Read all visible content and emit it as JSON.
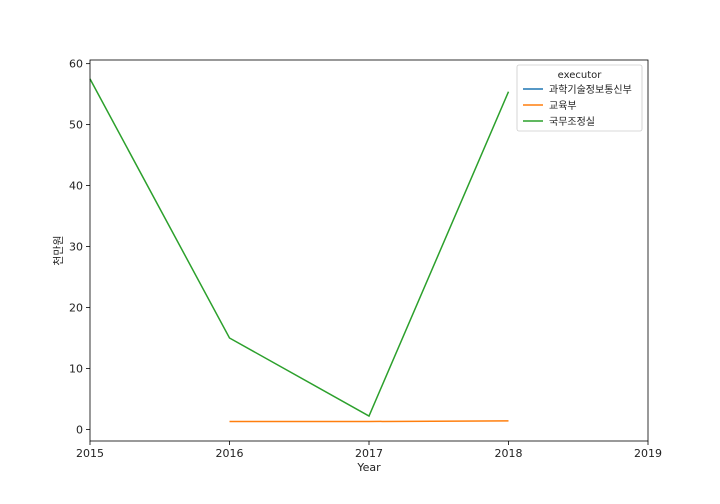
{
  "chart_data": {
    "type": "line",
    "title": "",
    "xlabel": "Year",
    "ylabel": "천만원",
    "xlim": [
      2015,
      2019
    ],
    "ylim": [
      -1.9,
      60.6
    ],
    "xticks": [
      2015,
      2016,
      2017,
      2018,
      2019
    ],
    "yticks": [
      0,
      10,
      20,
      30,
      40,
      50,
      60
    ],
    "grid": false,
    "legend": {
      "title": "executor",
      "placement": "top-right"
    },
    "series": [
      {
        "name": "과학기술정보통신부",
        "color": "#1f77b4",
        "x": [],
        "y": []
      },
      {
        "name": "교육부",
        "color": "#ff7f0e",
        "x": [
          2016,
          2017,
          2018
        ],
        "y": [
          1.3,
          1.3,
          1.4
        ]
      },
      {
        "name": "국무조정실",
        "color": "#2ca02c",
        "x": [
          2015,
          2016,
          2017,
          2018
        ],
        "y": [
          57.5,
          15.0,
          2.2,
          55.4
        ]
      }
    ]
  }
}
